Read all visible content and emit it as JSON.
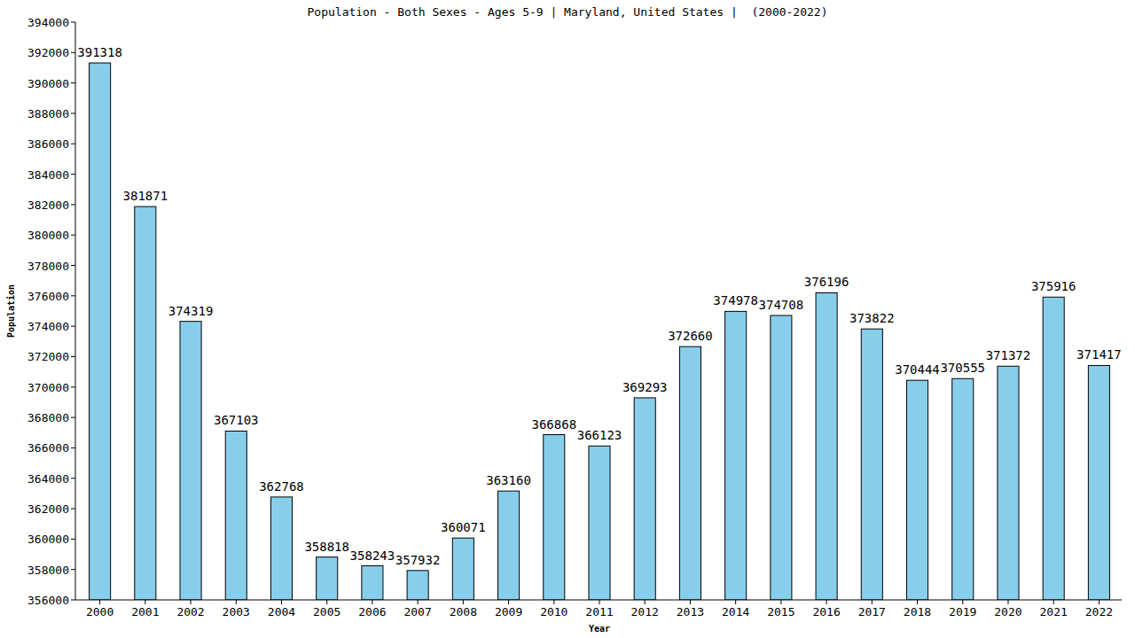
{
  "chart_data": {
    "type": "bar",
    "title": "Population - Both Sexes - Ages 5-9 | Maryland, United States |  (2000-2022)",
    "x_label": "Year",
    "y_label": "Population",
    "categories": [
      "2000",
      "2001",
      "2002",
      "2003",
      "2004",
      "2005",
      "2006",
      "2007",
      "2008",
      "2009",
      "2010",
      "2011",
      "2012",
      "2013",
      "2014",
      "2015",
      "2016",
      "2017",
      "2018",
      "2019",
      "2020",
      "2021",
      "2022"
    ],
    "values": [
      391318,
      381871,
      374319,
      367103,
      362768,
      358818,
      358243,
      357932,
      360071,
      363160,
      366868,
      366123,
      369293,
      372660,
      374978,
      374708,
      376196,
      373822,
      370444,
      370555,
      371372,
      375916,
      371417
    ],
    "color": "#87ceeb",
    "ylim": [
      356000,
      394000
    ],
    "yticks": [
      356000,
      358000,
      360000,
      362000,
      364000,
      366000,
      368000,
      370000,
      372000,
      374000,
      376000,
      378000,
      380000,
      382000,
      384000,
      386000,
      388000,
      390000,
      392000,
      394000
    ],
    "grid": false,
    "data_labels": true
  }
}
